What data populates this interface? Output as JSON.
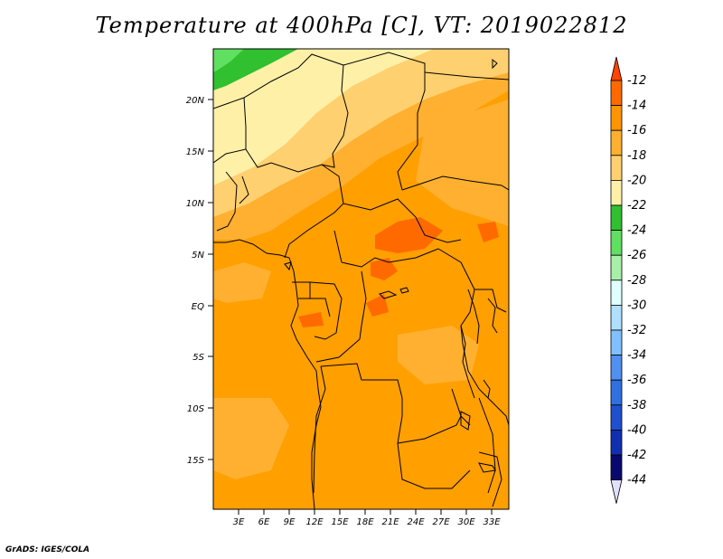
{
  "title": "Temperature at 400hPa [C], VT: 2019022812",
  "credit": "GrADS: IGES/COLA",
  "map": {
    "lat_labels": [
      "20N",
      "15N",
      "10N",
      "5N",
      "EQ",
      "5S",
      "10S",
      "15S"
    ],
    "lon_labels": [
      "3E",
      "6E",
      "9E",
      "12E",
      "15E",
      "18E",
      "21E",
      "24E",
      "27E",
      "30E",
      "33E"
    ]
  },
  "colorbar": {
    "labels": [
      "-12",
      "-14",
      "-16",
      "-18",
      "-20",
      "-22",
      "-24",
      "-26",
      "-28",
      "-30",
      "-32",
      "-34",
      "-36",
      "-38",
      "-40",
      "-42",
      "-44"
    ],
    "colors": [
      "#ff4500",
      "#ff6a00",
      "#ff9500",
      "#ffb030",
      "#ffd070",
      "#fff0a8",
      "#30c030",
      "#60e060",
      "#a8f0a8",
      "#e0ffff",
      "#b0e0ff",
      "#80c0ff",
      "#5090f0",
      "#3070e0",
      "#2050d0",
      "#1030b0",
      "#080870",
      "#e0e0ff"
    ]
  },
  "chart_data": {
    "type": "heatmap",
    "title": "Temperature at 400hPa [C], VT: 2019022812",
    "variable": "Temperature at 400hPa",
    "units": "C",
    "valid_time": "2019022812",
    "lon_range": [
      0,
      35
    ],
    "lat_range": [
      -20,
      25
    ],
    "color_levels": [
      -12,
      -14,
      -16,
      -18,
      -20,
      -22,
      -24,
      -26,
      -28,
      -30,
      -32,
      -34,
      -36,
      -38,
      -40,
      -42,
      -44
    ]
  }
}
